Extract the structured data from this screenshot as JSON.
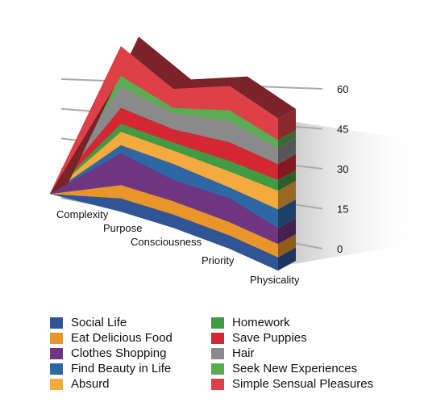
{
  "chart_data": {
    "type": "area",
    "stacked": true,
    "three_d": true,
    "title": "",
    "xlabel": "",
    "ylabel": "",
    "categories": [
      "Complexity",
      "Purpose",
      "Consciousness",
      "Priority",
      "Physicality"
    ],
    "y_ticks": [
      "0",
      "15",
      "30",
      "45",
      "60"
    ],
    "ylim": [
      0,
      60
    ],
    "grid": true,
    "legend_position": "bottom",
    "series": [
      {
        "name": "Social Life",
        "color": "#2f5597",
        "values": [
          5,
          5,
          5,
          5,
          5
        ]
      },
      {
        "name": "Eat Delicious Food",
        "color": "#e8952a",
        "values": [
          5,
          5,
          5,
          5,
          5
        ]
      },
      {
        "name": "Clothes Shopping",
        "color": "#6e3580",
        "values": [
          7,
          12,
          8,
          9,
          6
        ]
      },
      {
        "name": "Find Beauty in Life",
        "color": "#2d68a5",
        "values": [
          7,
          3,
          6,
          4,
          7
        ]
      },
      {
        "name": "Absurd",
        "color": "#f4aa3c",
        "values": [
          6,
          5,
          5,
          6,
          7
        ]
      },
      {
        "name": "Homework",
        "color": "#439a45",
        "values": [
          4,
          3,
          3,
          4,
          4
        ]
      },
      {
        "name": "Save Puppies",
        "color": "#d32733",
        "values": [
          4,
          6,
          5,
          7,
          6
        ]
      },
      {
        "name": "Hair",
        "color": "#8a8a8a",
        "values": [
          6,
          8,
          6,
          8,
          6
        ]
      },
      {
        "name": "Seek New Experiences",
        "color": "#5aab52",
        "values": [
          3,
          4,
          2,
          4,
          3
        ]
      },
      {
        "name": "Simple Sensual Pleasures",
        "color": "#dd4048",
        "values": [
          8,
          11,
          7,
          9,
          8
        ]
      }
    ]
  },
  "legend": {
    "left": [
      "Social Life",
      "Eat Delicious Food",
      "Clothes Shopping",
      "Find Beauty in Life",
      "Absurd"
    ],
    "right": [
      "Homework",
      "Save Puppies",
      "Hair",
      "Seek New Experiences",
      "Simple Sensual Pleasures"
    ]
  },
  "colors": {
    "gridline": "#aaaaaa",
    "tick_text": "#111111",
    "shadow": "#c8c8c8"
  }
}
